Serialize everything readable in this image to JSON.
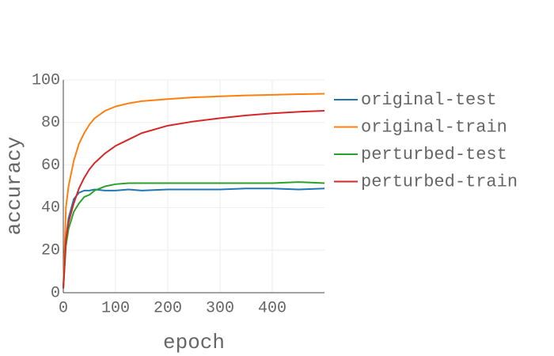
{
  "chart_data": {
    "type": "line",
    "x_label": "epoch",
    "y_label": "accuracy",
    "x": [
      0,
      5,
      10,
      20,
      30,
      40,
      50,
      60,
      80,
      100,
      125,
      150,
      200,
      250,
      300,
      350,
      400,
      450,
      500
    ],
    "series": [
      {
        "name": "original-test",
        "color": "#1f77b4",
        "values": [
          2,
          25,
          35,
          44,
          47,
          48,
          48,
          48.5,
          48,
          48,
          48.5,
          48,
          48.5,
          48.5,
          48.5,
          49,
          49,
          48.5,
          49
        ]
      },
      {
        "name": "original-train",
        "color": "#ff7f0e",
        "values": [
          2,
          40,
          50,
          62,
          70,
          75,
          79,
          82,
          85.5,
          87.5,
          89,
          90,
          91,
          91.8,
          92.3,
          92.7,
          93,
          93.3,
          93.5
        ]
      },
      {
        "name": "perturbed-test",
        "color": "#2ca02c",
        "values": [
          2,
          22,
          30,
          38,
          42,
          45,
          46,
          48,
          50,
          51,
          51.5,
          51.5,
          51.5,
          51.5,
          51.5,
          51.5,
          51.5,
          52,
          51.5
        ]
      },
      {
        "name": "perturbed-train",
        "color": "#d62728",
        "values": [
          2,
          25,
          33,
          42,
          49,
          54,
          58,
          61,
          65.5,
          69,
          72,
          75,
          78.5,
          80.5,
          82,
          83.3,
          84.3,
          85,
          85.5
        ]
      }
    ],
    "xlim": [
      0,
      500
    ],
    "xticks": [
      0,
      100,
      200,
      300,
      400
    ],
    "ylim": [
      0,
      100
    ],
    "yticks": [
      0,
      20,
      40,
      60,
      80,
      100
    ],
    "grid": true,
    "legend": "right"
  }
}
